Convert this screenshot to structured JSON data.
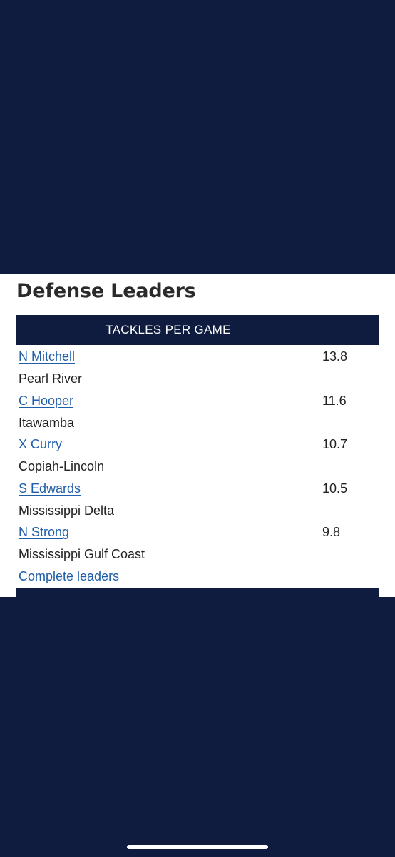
{
  "section": {
    "title": "Defense Leaders",
    "category_header": "TACKLES PER GAME"
  },
  "leaders": [
    {
      "player": "N Mitchell",
      "team": "Pearl River",
      "value": "13.8"
    },
    {
      "player": "C Hooper",
      "team": "Itawamba",
      "value": "11.6"
    },
    {
      "player": "X Curry",
      "team": "Copiah-Lincoln",
      "value": "10.7"
    },
    {
      "player": "S Edwards",
      "team": "Mississippi Delta",
      "value": "10.5"
    },
    {
      "player": "N Strong",
      "team": "Mississippi Gulf Coast",
      "value": "9.8"
    }
  ],
  "links": {
    "complete_leaders": "Complete leaders"
  },
  "colors": {
    "background": "#0f1c40",
    "panel": "#ffffff",
    "link": "#1f5ea8",
    "text": "#222222"
  }
}
